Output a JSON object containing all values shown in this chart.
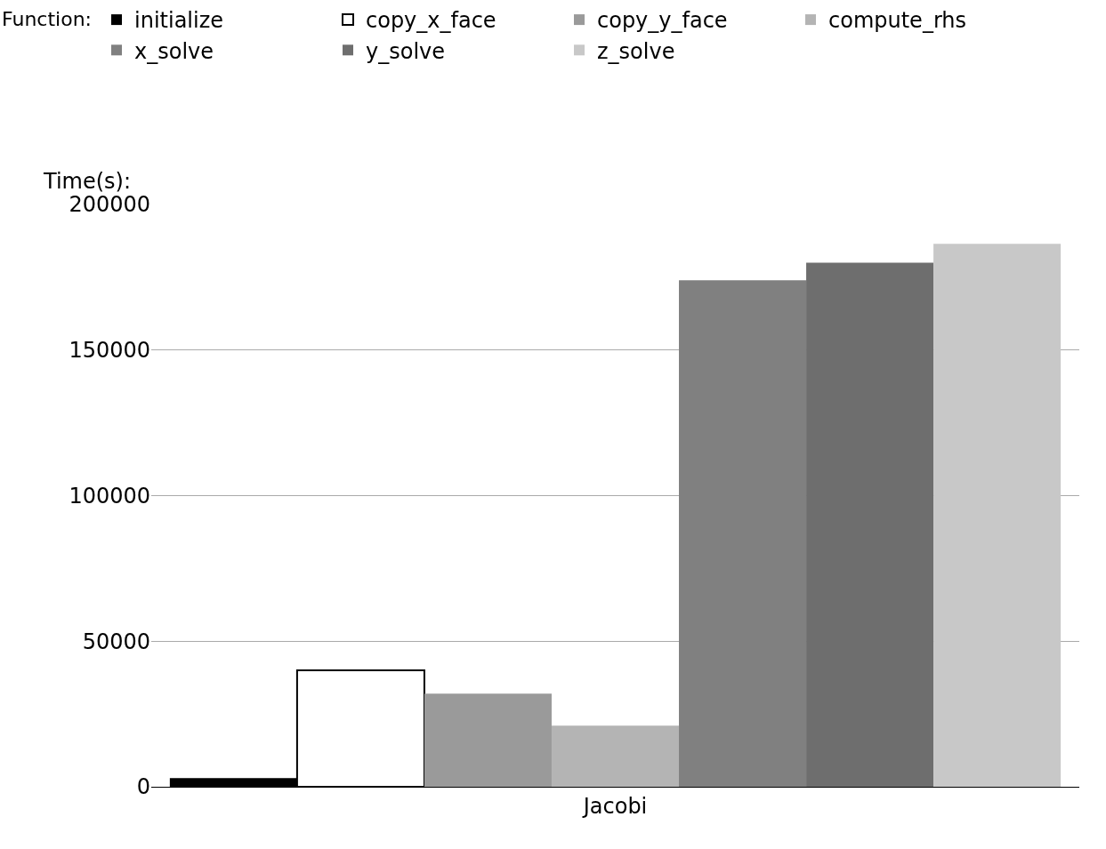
{
  "chart_data": {
    "type": "bar",
    "ylabel": "Time(s):",
    "legend_title": "Function:",
    "categories": [
      "Jacobi"
    ],
    "series": [
      {
        "name": "initialize",
        "color": "#000000",
        "values": [
          3000
        ]
      },
      {
        "name": "copy_x_face",
        "color": "#ffffff",
        "values": [
          40000
        ]
      },
      {
        "name": "copy_y_face",
        "color": "#9a9a9a",
        "values": [
          32000
        ]
      },
      {
        "name": "compute_rhs",
        "color": "#b4b4b4",
        "values": [
          21000
        ]
      },
      {
        "name": "x_solve",
        "color": "#808080",
        "values": [
          174000
        ]
      },
      {
        "name": "y_solve",
        "color": "#6e6e6e",
        "values": [
          180000
        ]
      },
      {
        "name": "z_solve",
        "color": "#c8c8c8",
        "values": [
          186500
        ]
      }
    ],
    "ylim": [
      0,
      200000
    ],
    "yticks": [
      0,
      50000,
      100000,
      150000,
      200000
    ],
    "grid": "y",
    "legend": "top left"
  }
}
